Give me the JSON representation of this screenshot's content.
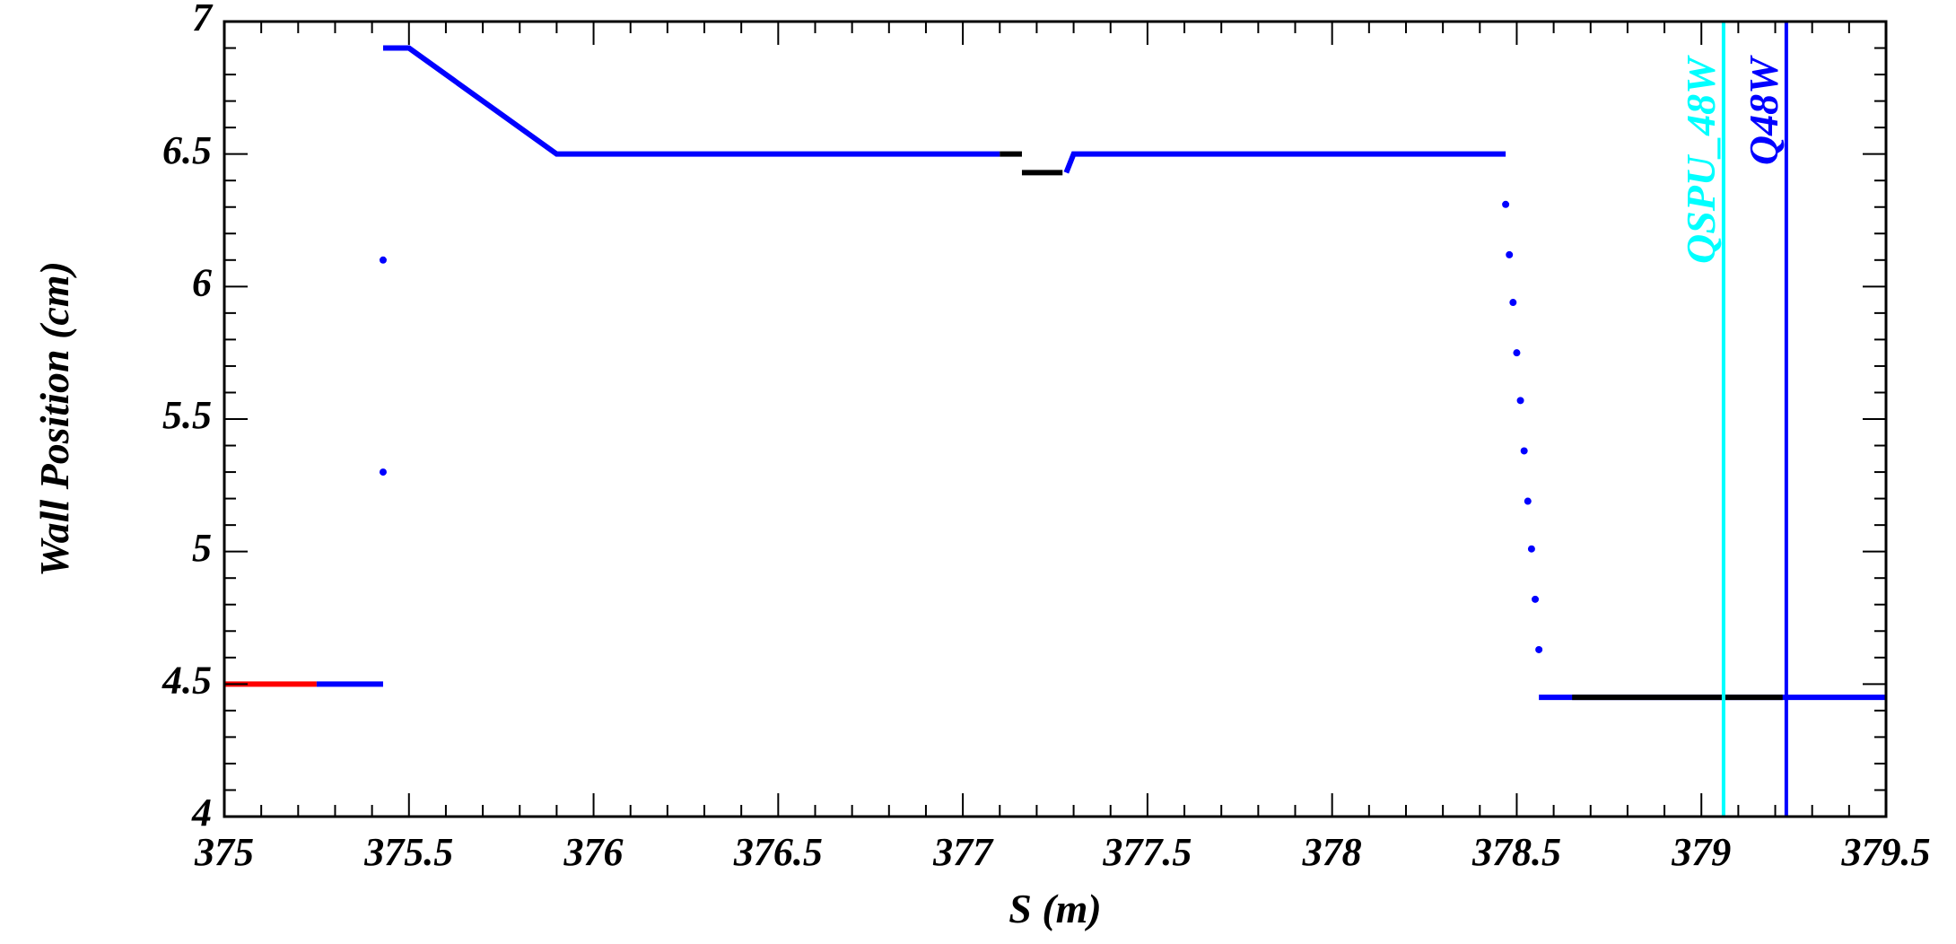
{
  "chart_data": {
    "type": "line",
    "x_label": "S (m)",
    "y_label": "Wall Position (cm)",
    "xlim": [
      375,
      379.5
    ],
    "ylim": [
      4,
      7
    ],
    "xticks": [
      375,
      375.5,
      376,
      376.5,
      377,
      377.5,
      378,
      378.5,
      379,
      379.5
    ],
    "yticks": [
      4,
      4.5,
      5,
      5.5,
      6,
      6.5,
      7
    ],
    "grid": false,
    "series": [
      {
        "color": "#ff0000",
        "x": [
          375,
          375.25
        ],
        "values": [
          4.5,
          4.5
        ]
      },
      {
        "color": "#0000ff",
        "x": [
          375.25,
          375.43,
          null,
          375.43,
          null,
          375.43,
          null,
          375.43,
          375.5,
          375.9,
          377.1,
          null,
          377.28,
          377.3,
          378.47,
          null,
          378.47,
          null,
          378.48,
          null,
          378.49,
          null,
          378.5,
          null,
          378.51,
          null,
          378.52,
          null,
          378.53,
          null,
          378.54,
          null,
          378.55,
          null,
          378.56,
          null,
          378.56,
          379.5
        ],
        "values": [
          4.5,
          4.5,
          null,
          5.3,
          null,
          6.1,
          null,
          6.9,
          6.9,
          6.5,
          6.5,
          null,
          6.43,
          6.5,
          6.5,
          null,
          6.31,
          null,
          6.12,
          null,
          5.94,
          null,
          5.75,
          null,
          5.57,
          null,
          5.38,
          null,
          5.19,
          null,
          5.01,
          null,
          4.82,
          null,
          4.63,
          null,
          4.45,
          4.45
        ]
      },
      {
        "color": "#000000",
        "x": [
          377.1,
          377.16,
          null,
          377.16,
          377.27,
          null,
          378.65,
          379.22
        ],
        "values": [
          6.5,
          6.5,
          null,
          6.43,
          6.43,
          null,
          4.45,
          4.45
        ]
      }
    ],
    "markers": [
      {
        "label": "QSPU_48W",
        "x": 379.06,
        "color": "#00ffff"
      },
      {
        "label": "Q48W",
        "x": 379.23,
        "color": "#0000ff"
      }
    ]
  }
}
